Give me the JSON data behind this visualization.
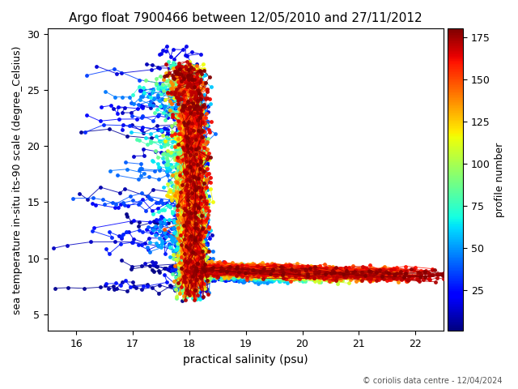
{
  "title": "Argo float 7900466 between 12/05/2010 and 27/11/2012",
  "xlabel": "practical salinity (psu)",
  "ylabel": "sea temperature in-situ its-90 scale (degree_Celsius)",
  "colorbar_label": "profile number",
  "footnote": "© coriolis data centre - 12/04/2024",
  "xlim": [
    15.5,
    22.5
  ],
  "ylim": [
    3.5,
    30.5
  ],
  "xticks": [
    16,
    17,
    18,
    19,
    20,
    21,
    22
  ],
  "yticks": [
    5,
    10,
    15,
    20,
    25,
    30
  ],
  "cbar_ticks": [
    25,
    50,
    75,
    100,
    125,
    150,
    175
  ],
  "n_profiles": 180,
  "colormap": "jet",
  "vmin": 1,
  "vmax": 180
}
